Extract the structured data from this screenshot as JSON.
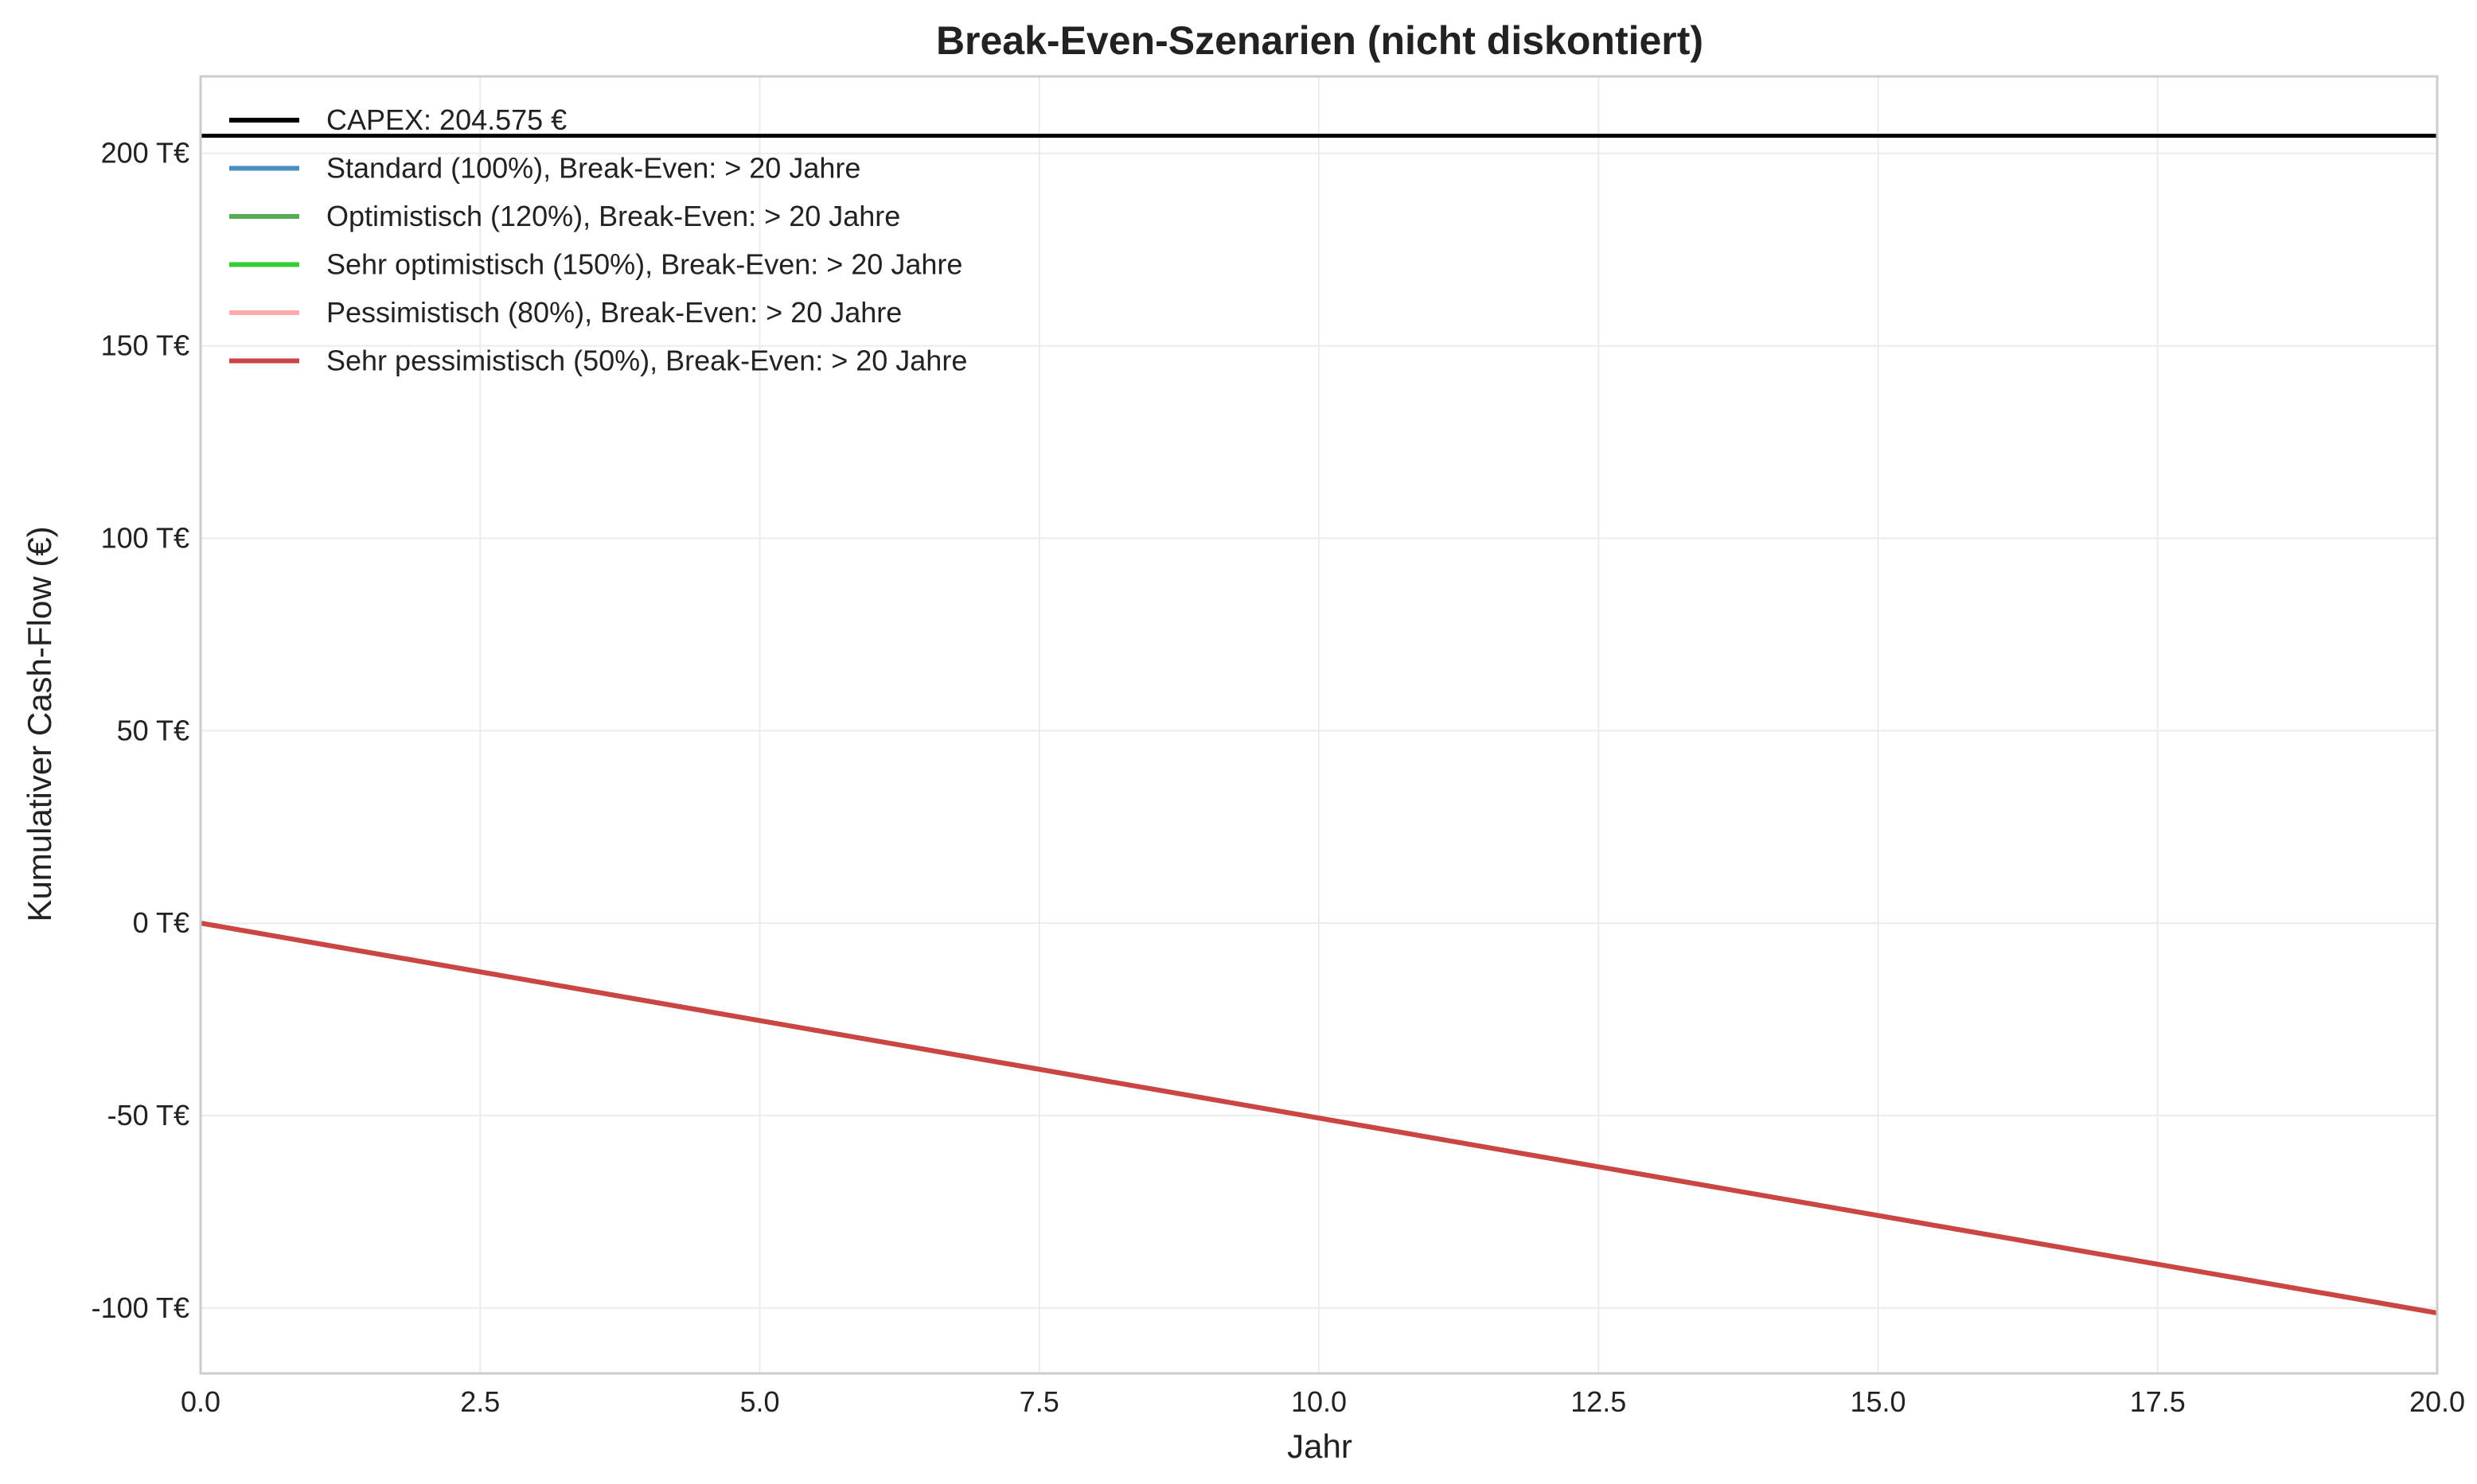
{
  "chart_data": {
    "type": "line",
    "title": "Break-Even-Szenarien (nicht diskontiert)",
    "xlabel": "Jahr",
    "ylabel": "Kumulativer Cash-Flow (€)",
    "xlim": [
      0,
      20
    ],
    "ylim": [
      -117,
      220
    ],
    "grid": true,
    "legend_position": "top-left",
    "x_ticks": [
      0,
      2.5,
      5,
      7.5,
      10,
      12.5,
      15,
      17.5,
      20
    ],
    "x_tick_labels": [
      "0.0",
      "2.5",
      "5.0",
      "7.5",
      "10.0",
      "12.5",
      "15.0",
      "17.5",
      "20.0"
    ],
    "y_ticks": [
      -100,
      -50,
      0,
      50,
      100,
      150,
      200
    ],
    "y_tick_labels": [
      "-100 T€",
      "-50 T€",
      "0 T€",
      "50 T€",
      "100 T€",
      "150 T€",
      "200 T€"
    ],
    "y_unit": "T€",
    "reference_line": {
      "name": "CAPEX: 204.575 €",
      "value": 204.575,
      "color": "#000000"
    },
    "x": [
      0,
      20
    ],
    "series": [
      {
        "name": "Standard (100%), Break-Even: > 20 Jahre",
        "color": "#4a8ec2",
        "values": [
          0,
          -101.3
        ]
      },
      {
        "name": "Optimistisch (120%), Break-Even: > 20 Jahre",
        "color": "#55aa55",
        "values": [
          0,
          -101.3
        ]
      },
      {
        "name": "Sehr optimistisch (150%), Break-Even: > 20 Jahre",
        "color": "#33cc33",
        "values": [
          0,
          -101.3
        ]
      },
      {
        "name": "Pessimistisch (80%), Break-Even: > 20 Jahre",
        "color": "#ffaaaa",
        "values": [
          0,
          -101.3
        ]
      },
      {
        "name": "Sehr pessimistisch (50%), Break-Even: > 20 Jahre",
        "color": "#cc4444",
        "values": [
          0,
          -101.3
        ]
      }
    ]
  }
}
